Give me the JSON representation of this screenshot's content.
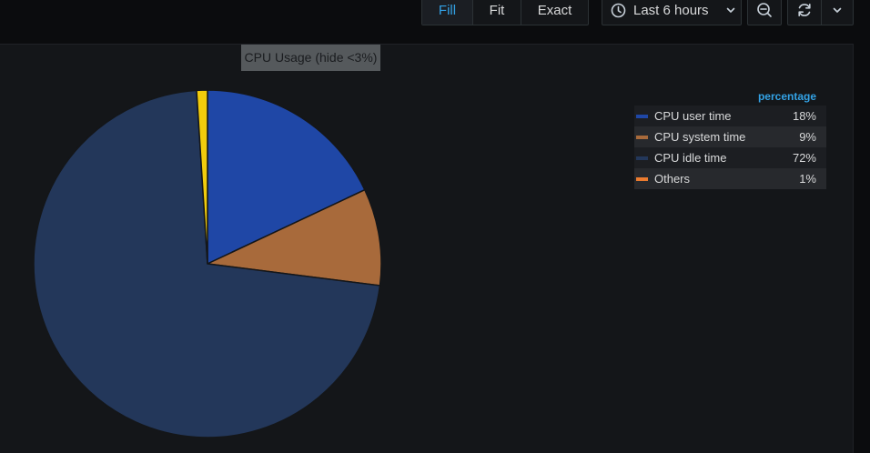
{
  "toolbar": {
    "fit_buttons": [
      {
        "label": "Fill",
        "active": true
      },
      {
        "label": "Fit",
        "active": false
      },
      {
        "label": "Exact",
        "active": false
      }
    ],
    "time_range": {
      "label": "Last 6 hours",
      "icon": "clock-icon"
    },
    "zoom_icon": "zoom-out-icon",
    "refresh_icon": "refresh-icon",
    "refresh_menu_icon": "chevron-down-icon"
  },
  "panel": {
    "title": "CPU Usage (hide <3%)"
  },
  "legend": {
    "header": "percentage",
    "items": [
      {
        "name": "CPU user time",
        "value": "18%",
        "color": "#1f47a6"
      },
      {
        "name": "CPU system time",
        "value": "9%",
        "color": "#a86a3b"
      },
      {
        "name": "CPU idle time",
        "value": "72%",
        "color": "#23375a"
      },
      {
        "name": "Others",
        "value": "1%",
        "color": "#eb7b2f"
      }
    ]
  },
  "chart_data": {
    "type": "pie",
    "title": "CPU Usage (hide <3%)",
    "slices": [
      {
        "label": "CPU user time",
        "value": 18,
        "color": "#1f47a6"
      },
      {
        "label": "CPU system time",
        "value": 9,
        "color": "#a86a3b"
      },
      {
        "label": "CPU idle time",
        "value": 72,
        "color": "#23375a"
      },
      {
        "label": "Others",
        "value": 1,
        "color": "#f2cc0c"
      }
    ],
    "legend_position": "right"
  }
}
